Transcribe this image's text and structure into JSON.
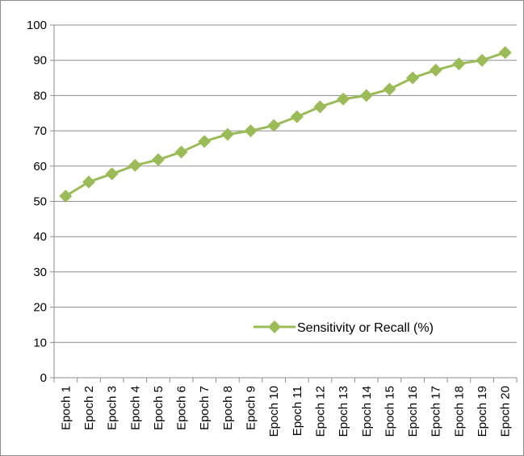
{
  "chart_data": {
    "type": "line",
    "title": "",
    "xlabel": "",
    "ylabel": "",
    "categories": [
      "Epoch 1",
      "Epoch 2",
      "Epoch 3",
      "Epoch 4",
      "Epoch 5",
      "Epoch 6",
      "Epoch 7",
      "Epoch 8",
      "Epoch 9",
      "Epoch 10",
      "Epoch 11",
      "Epoch 12",
      "Epoch 13",
      "Epoch 14",
      "Epoch 15",
      "Epoch 16",
      "Epoch 17",
      "Epoch 18",
      "Epoch 19",
      "Epoch 20"
    ],
    "series": [
      {
        "name": "Sensitivity or Recall (%)",
        "color": "#9bbb59",
        "marker": "diamond",
        "values": [
          51.5,
          55.5,
          57.8,
          60.2,
          61.8,
          64.0,
          67.0,
          69.0,
          70.0,
          71.5,
          74.0,
          76.8,
          79.0,
          80.0,
          81.8,
          85.0,
          87.2,
          89.0,
          90.0,
          92.2
        ]
      }
    ],
    "ylim": [
      0,
      100
    ],
    "yticks": [
      "0",
      "10",
      "20",
      "30",
      "40",
      "50",
      "60",
      "70",
      "80",
      "90",
      "100"
    ],
    "grid": true,
    "legend_position": "bottom-right, inside plot"
  }
}
